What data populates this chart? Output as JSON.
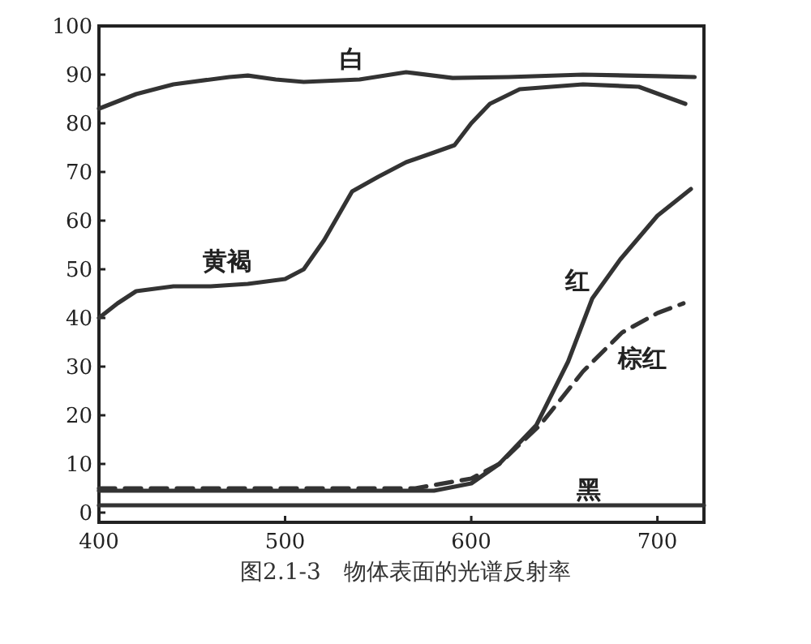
{
  "chart_data": {
    "type": "line",
    "title": "图2.1-3　物体表面的光谱反射率",
    "xlim": [
      400,
      725
    ],
    "ylim": [
      -2,
      100
    ],
    "xticks": [
      400,
      500,
      600,
      700
    ],
    "yticks": [
      0,
      10,
      20,
      30,
      40,
      50,
      60,
      70,
      80,
      90,
      100
    ],
    "grid": false,
    "legend": false,
    "marker": "none",
    "series": [
      {
        "name": "白",
        "color": "#333333",
        "line_style": "solid",
        "x": [
          400,
          420,
          440,
          470,
          480,
          495,
          510,
          540,
          565,
          590,
          620,
          660,
          700,
          720
        ],
        "values": [
          83,
          86,
          88,
          89.5,
          89.8,
          89,
          88.5,
          89,
          90.5,
          89.3,
          89.5,
          90,
          89.7,
          89.5
        ]
      },
      {
        "name": "黄褐",
        "color": "#333333",
        "line_style": "solid",
        "x": [
          400,
          410,
          420,
          440,
          460,
          480,
          500,
          510,
          521,
          530,
          536,
          550,
          565,
          580,
          591,
          600,
          610,
          626,
          660,
          690,
          715
        ],
        "values": [
          40,
          43,
          45.5,
          46.5,
          46.5,
          47,
          48,
          50,
          56,
          62,
          66,
          69,
          72,
          74,
          75.5,
          80,
          84,
          87,
          88,
          87.5,
          84
        ]
      },
      {
        "name": "红",
        "color": "#333333",
        "line_style": "solid",
        "x": [
          400,
          500,
          580,
          600,
          615,
          635,
          652,
          665,
          680,
          700,
          718
        ],
        "values": [
          4.5,
          4.5,
          4.5,
          6,
          10,
          18,
          31,
          44,
          52,
          61,
          66.5
        ]
      },
      {
        "name": "棕红",
        "color": "#333333",
        "line_style": "dashed",
        "x": [
          400,
          500,
          570,
          600,
          615,
          637,
          660,
          681,
          700,
          714
        ],
        "values": [
          5,
          5,
          5,
          7,
          10,
          18,
          29,
          37,
          41,
          43
        ]
      },
      {
        "name": "黑",
        "color": "#333333",
        "line_style": "solid",
        "x": [
          400,
          500,
          600,
          700,
          725
        ],
        "values": [
          1.5,
          1.5,
          1.5,
          1.5,
          1.5
        ]
      }
    ]
  }
}
